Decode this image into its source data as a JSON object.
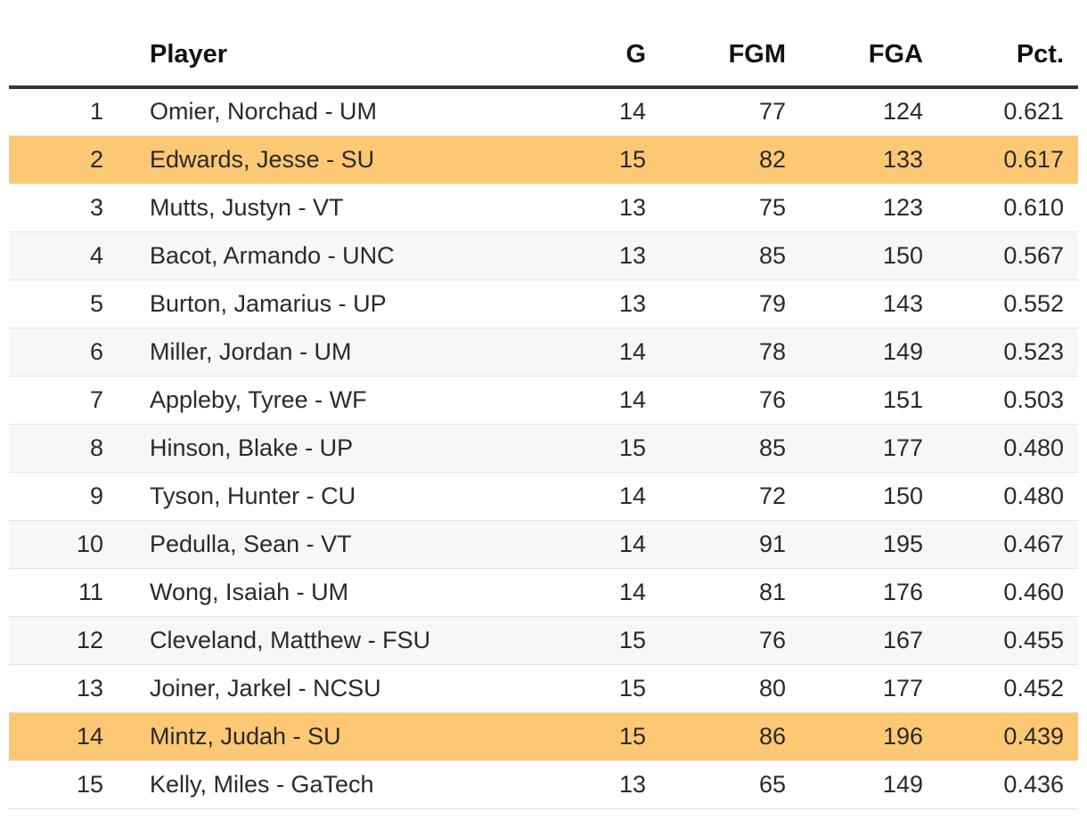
{
  "table": {
    "headers": {
      "rank": "",
      "player": "Player",
      "g": "G",
      "fgm": "FGM",
      "fga": "FGA",
      "pct": "Pct."
    },
    "highlight_color": "#fcc874",
    "rows": [
      {
        "rank": "1",
        "player": "Omier, Norchad - UM",
        "g": "14",
        "fgm": "77",
        "fga": "124",
        "pct": "0.621",
        "highlight": false
      },
      {
        "rank": "2",
        "player": "Edwards, Jesse - SU",
        "g": "15",
        "fgm": "82",
        "fga": "133",
        "pct": "0.617",
        "highlight": true
      },
      {
        "rank": "3",
        "player": "Mutts, Justyn - VT",
        "g": "13",
        "fgm": "75",
        "fga": "123",
        "pct": "0.610",
        "highlight": false
      },
      {
        "rank": "4",
        "player": "Bacot, Armando - UNC",
        "g": "13",
        "fgm": "85",
        "fga": "150",
        "pct": "0.567",
        "highlight": false
      },
      {
        "rank": "5",
        "player": "Burton, Jamarius - UP",
        "g": "13",
        "fgm": "79",
        "fga": "143",
        "pct": "0.552",
        "highlight": false
      },
      {
        "rank": "6",
        "player": "Miller, Jordan - UM",
        "g": "14",
        "fgm": "78",
        "fga": "149",
        "pct": "0.523",
        "highlight": false
      },
      {
        "rank": "7",
        "player": "Appleby, Tyree - WF",
        "g": "14",
        "fgm": "76",
        "fga": "151",
        "pct": "0.503",
        "highlight": false
      },
      {
        "rank": "8",
        "player": "Hinson, Blake - UP",
        "g": "15",
        "fgm": "85",
        "fga": "177",
        "pct": "0.480",
        "highlight": false
      },
      {
        "rank": "9",
        "player": "Tyson, Hunter - CU",
        "g": "14",
        "fgm": "72",
        "fga": "150",
        "pct": "0.480",
        "highlight": false
      },
      {
        "rank": "10",
        "player": "Pedulla, Sean - VT",
        "g": "14",
        "fgm": "91",
        "fga": "195",
        "pct": "0.467",
        "highlight": false
      },
      {
        "rank": "11",
        "player": "Wong, Isaiah - UM",
        "g": "14",
        "fgm": "81",
        "fga": "176",
        "pct": "0.460",
        "highlight": false
      },
      {
        "rank": "12",
        "player": "Cleveland, Matthew - FSU",
        "g": "15",
        "fgm": "76",
        "fga": "167",
        "pct": "0.455",
        "highlight": false
      },
      {
        "rank": "13",
        "player": "Joiner, Jarkel - NCSU",
        "g": "15",
        "fgm": "80",
        "fga": "177",
        "pct": "0.452",
        "highlight": false
      },
      {
        "rank": "14",
        "player": "Mintz, Judah - SU",
        "g": "15",
        "fgm": "86",
        "fga": "196",
        "pct": "0.439",
        "highlight": true
      },
      {
        "rank": "15",
        "player": "Kelly, Miles - GaTech",
        "g": "13",
        "fgm": "65",
        "fga": "149",
        "pct": "0.436",
        "highlight": false
      }
    ]
  }
}
